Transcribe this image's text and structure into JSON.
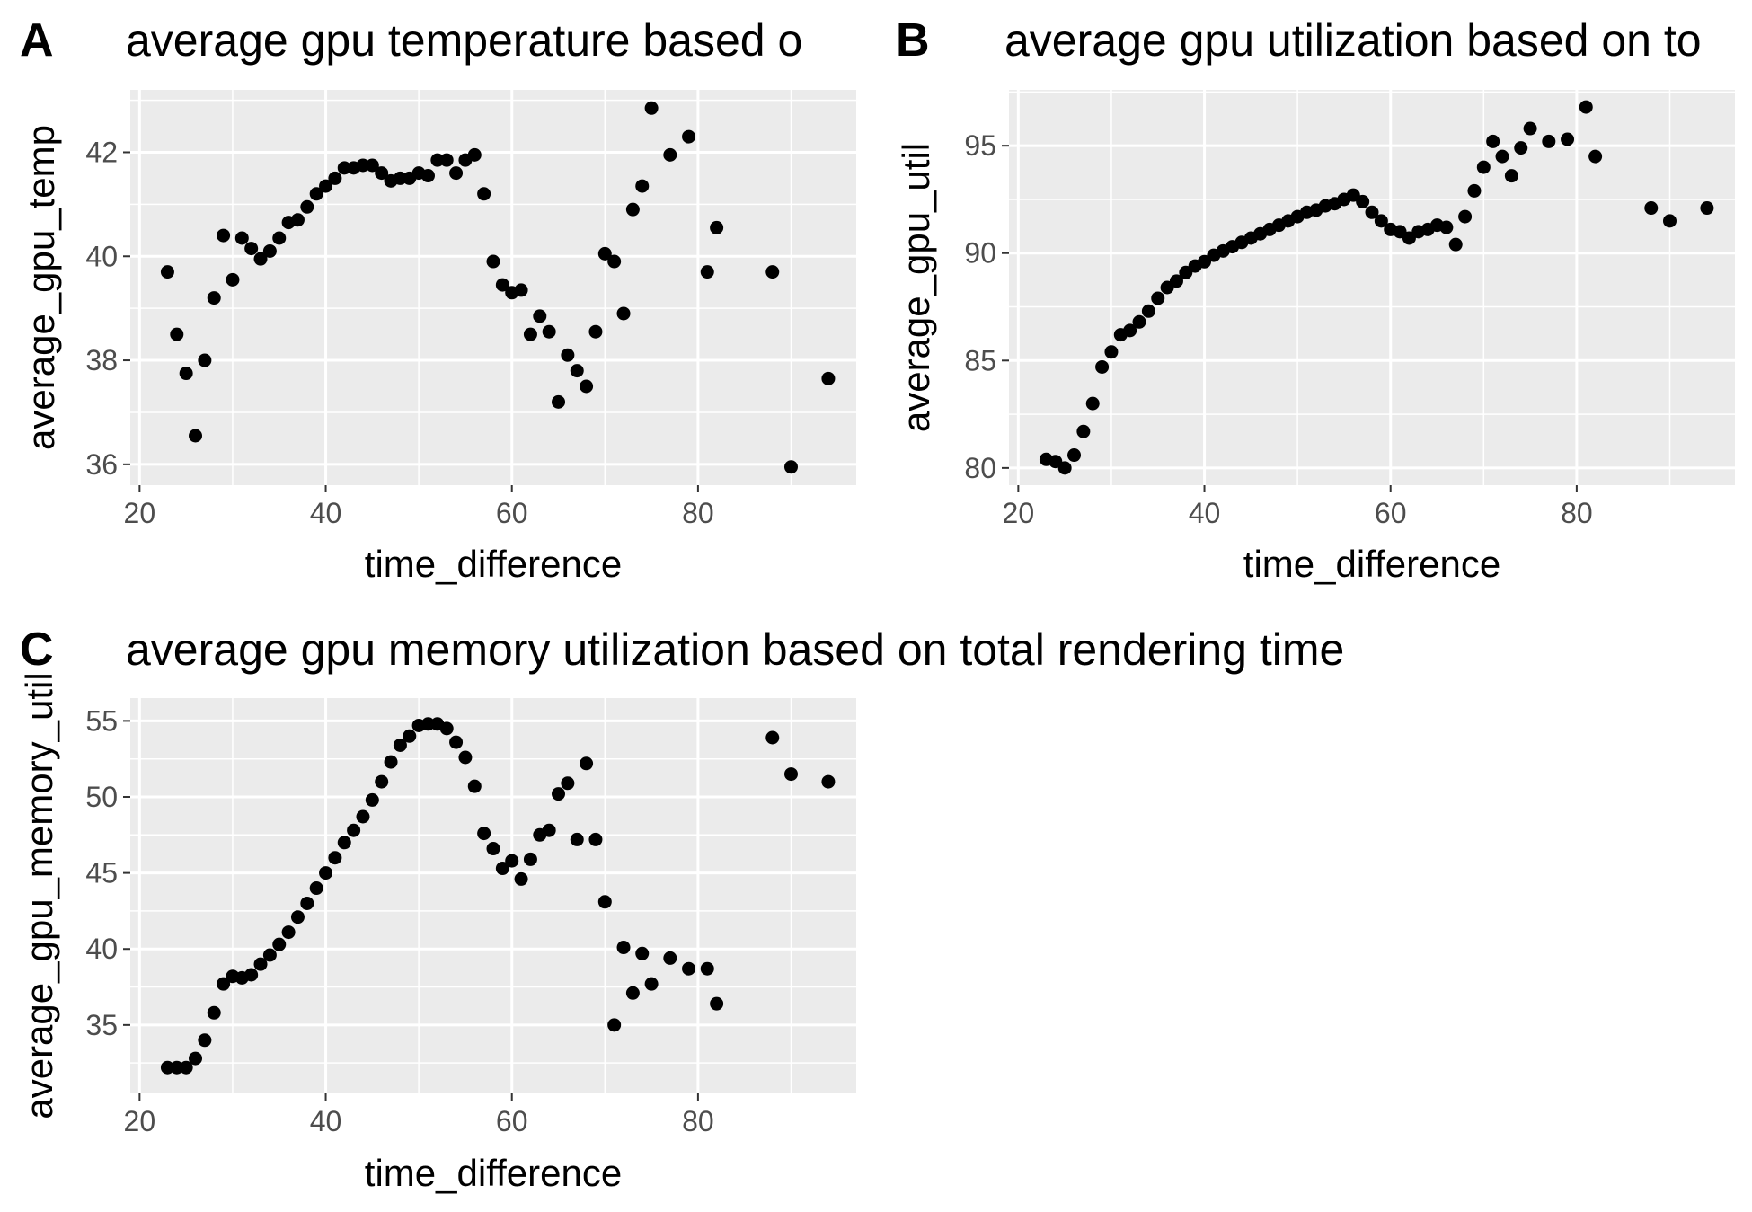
{
  "chart_data": [
    {
      "panel": "A",
      "type": "scatter",
      "title": "average gpu temperature based o",
      "xlabel": "time_difference",
      "ylabel": "average_gpu_temp",
      "xlim": [
        19,
        97
      ],
      "ylim": [
        35.6,
        43.2
      ],
      "xticks": [
        20,
        40,
        60,
        80
      ],
      "yticks": [
        36,
        38,
        40,
        42
      ],
      "grid": true,
      "panel_background": "#ebebeb",
      "point_color": "#000000",
      "x": [
        23,
        24,
        25,
        26,
        27,
        28,
        29,
        30,
        31,
        32,
        33,
        34,
        35,
        36,
        37,
        38,
        39,
        40,
        41,
        42,
        43,
        44,
        45,
        46,
        47,
        48,
        49,
        50,
        51,
        52,
        53,
        54,
        55,
        56,
        57,
        58,
        59,
        60,
        61,
        62,
        63,
        64,
        65,
        66,
        67,
        68,
        69,
        70,
        71,
        72,
        73,
        74,
        75,
        77,
        79,
        81,
        82,
        88,
        90,
        94
      ],
      "y": [
        39.7,
        38.5,
        37.75,
        36.55,
        38.0,
        39.2,
        40.4,
        39.55,
        40.35,
        40.15,
        39.95,
        40.1,
        40.35,
        40.65,
        40.7,
        40.95,
        41.2,
        41.35,
        41.5,
        41.7,
        41.7,
        41.75,
        41.75,
        41.6,
        41.45,
        41.5,
        41.5,
        41.6,
        41.55,
        41.85,
        41.85,
        41.6,
        41.85,
        41.95,
        41.2,
        39.9,
        39.45,
        39.3,
        39.35,
        38.5,
        38.85,
        38.55,
        37.2,
        38.1,
        37.8,
        37.5,
        38.55,
        40.05,
        39.9,
        38.9,
        40.9,
        41.35,
        42.85,
        41.95,
        42.3,
        39.7,
        40.55,
        39.7,
        35.95,
        37.65
      ]
    },
    {
      "panel": "B",
      "type": "scatter",
      "title": "average gpu utilization based on to",
      "xlabel": "time_difference",
      "ylabel": "average_gpu_util",
      "xlim": [
        19,
        97
      ],
      "ylim": [
        79.2,
        97.6
      ],
      "xticks": [
        20,
        40,
        60,
        80
      ],
      "yticks": [
        80,
        85,
        90,
        95
      ],
      "grid": true,
      "panel_background": "#ebebeb",
      "point_color": "#000000",
      "x": [
        23,
        24,
        25,
        26,
        27,
        28,
        29,
        30,
        31,
        32,
        33,
        34,
        35,
        36,
        37,
        38,
        39,
        40,
        41,
        42,
        43,
        44,
        45,
        46,
        47,
        48,
        49,
        50,
        51,
        52,
        53,
        54,
        55,
        56,
        57,
        58,
        59,
        60,
        61,
        62,
        63,
        64,
        65,
        66,
        67,
        68,
        69,
        70,
        71,
        72,
        73,
        74,
        75,
        77,
        79,
        81,
        82,
        88,
        90,
        94
      ],
      "y": [
        80.4,
        80.3,
        80.0,
        80.6,
        81.7,
        83.0,
        84.7,
        85.4,
        86.2,
        86.4,
        86.8,
        87.3,
        87.9,
        88.4,
        88.7,
        89.1,
        89.4,
        89.6,
        89.9,
        90.1,
        90.3,
        90.5,
        90.7,
        90.9,
        91.1,
        91.3,
        91.5,
        91.7,
        91.9,
        92.0,
        92.2,
        92.3,
        92.5,
        92.7,
        92.4,
        91.9,
        91.5,
        91.1,
        91.0,
        90.7,
        91.0,
        91.1,
        91.3,
        91.2,
        90.4,
        91.7,
        92.9,
        94.0,
        95.2,
        94.5,
        93.6,
        94.9,
        95.8,
        95.2,
        95.3,
        96.8,
        94.5,
        92.1,
        91.5,
        92.1
      ]
    },
    {
      "panel": "C",
      "type": "scatter",
      "title": "average gpu memory utilization based on total rendering time",
      "xlabel": "time_difference",
      "ylabel": "average_gpu_memory_util",
      "xlim": [
        19,
        97
      ],
      "ylim": [
        30.5,
        56.5
      ],
      "xticks": [
        20,
        40,
        60,
        80
      ],
      "yticks": [
        35,
        40,
        45,
        50,
        55
      ],
      "grid": true,
      "panel_background": "#ebebeb",
      "point_color": "#000000",
      "x": [
        23,
        24,
        25,
        26,
        27,
        28,
        29,
        30,
        31,
        32,
        33,
        34,
        35,
        36,
        37,
        38,
        39,
        40,
        41,
        42,
        43,
        44,
        45,
        46,
        47,
        48,
        49,
        50,
        51,
        52,
        53,
        54,
        55,
        56,
        57,
        58,
        59,
        60,
        61,
        62,
        63,
        64,
        65,
        66,
        67,
        68,
        69,
        70,
        71,
        72,
        73,
        74,
        75,
        77,
        79,
        81,
        82,
        88,
        90,
        94
      ],
      "y": [
        32.2,
        32.2,
        32.2,
        32.8,
        34.0,
        35.8,
        37.7,
        38.2,
        38.1,
        38.3,
        39.0,
        39.6,
        40.3,
        41.1,
        42.1,
        43.0,
        44.0,
        45.0,
        46.0,
        47.0,
        47.8,
        48.7,
        49.8,
        51.0,
        52.3,
        53.4,
        54.0,
        54.7,
        54.8,
        54.8,
        54.5,
        53.6,
        52.6,
        50.7,
        47.6,
        46.6,
        45.3,
        45.8,
        44.6,
        45.9,
        47.5,
        47.8,
        50.2,
        50.9,
        47.2,
        52.2,
        47.2,
        43.1,
        35.0,
        40.1,
        37.1,
        39.7,
        37.7,
        39.4,
        38.7,
        38.7,
        36.4,
        53.9,
        51.5,
        51.0
      ]
    }
  ]
}
